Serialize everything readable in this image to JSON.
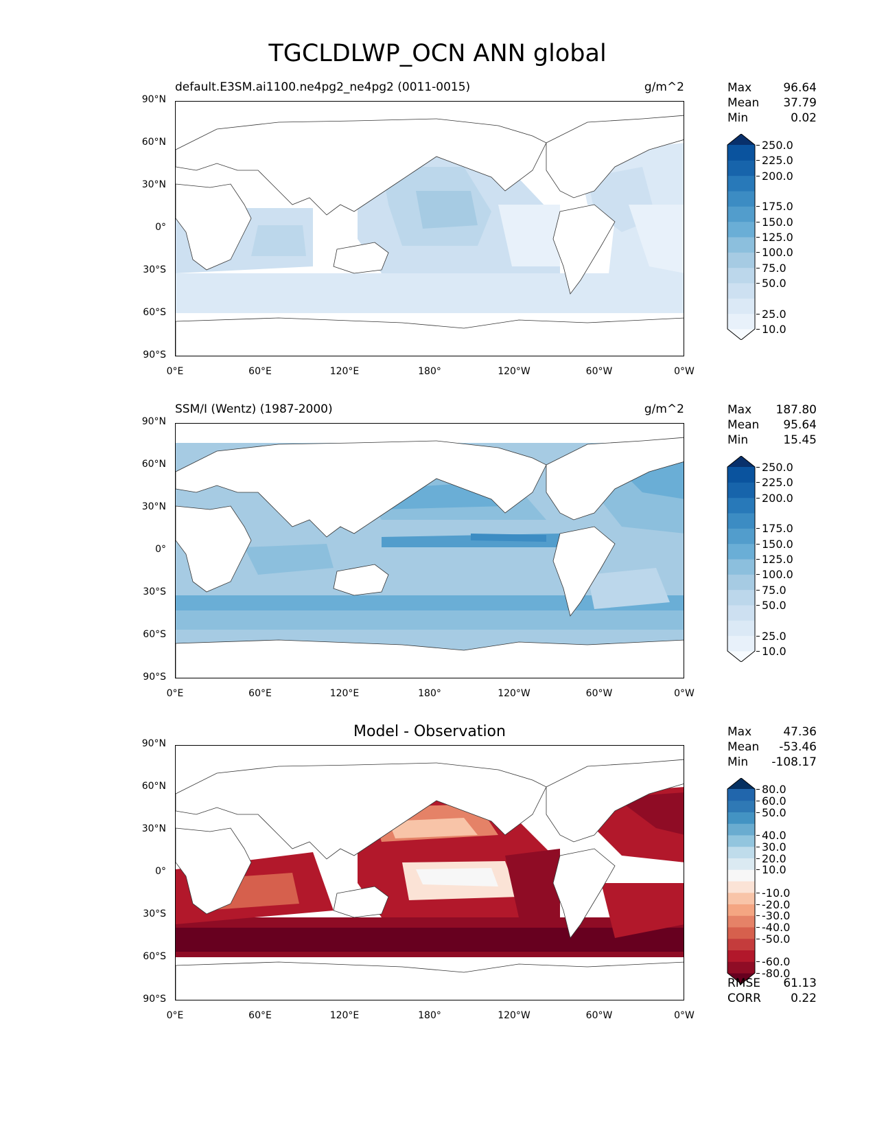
{
  "figure": {
    "title": "TGCLDLWP_OCN ANN global"
  },
  "axes": {
    "lat_labels": [
      "90°N",
      "60°N",
      "30°N",
      "0°",
      "30°S",
      "60°S",
      "90°S"
    ],
    "lon_labels": [
      "0°E",
      "60°E",
      "120°E",
      "180°",
      "120°W",
      "60°W",
      "0°W"
    ]
  },
  "panels": [
    {
      "id": "model",
      "title_left": "default.E3SM.ai1100.ne4pg2_ne4pg2 (0011-0015)",
      "title_right": "g/m^2",
      "stats": [
        {
          "label": "Max",
          "value": "96.64"
        },
        {
          "label": "Mean",
          "value": "37.79"
        },
        {
          "label": "Min",
          "value": "0.02"
        }
      ],
      "colorbar_labels": [
        "250.0",
        "225.0",
        "200.0",
        "175.0",
        "150.0",
        "125.0",
        "100.0",
        "75.0",
        "50.0",
        "25.0",
        "10.0"
      ],
      "colors": [
        "#f7fbff",
        "#e8f1fa",
        "#dbe9f6",
        "#cde0f1",
        "#bcd7eb",
        "#a6cbe3",
        "#8cbfdd",
        "#6aaed6",
        "#529dcc",
        "#3c8cc3",
        "#2879b9",
        "#1764ab",
        "#0a539e",
        "#08306b"
      ]
    },
    {
      "id": "obs",
      "title_left": "SSM/I (Wentz) (1987-2000)",
      "title_right": "g/m^2",
      "stats": [
        {
          "label": "Max",
          "value": "187.80"
        },
        {
          "label": "Mean",
          "value": "95.64"
        },
        {
          "label": "Min",
          "value": "15.45"
        }
      ],
      "colorbar_labels": [
        "250.0",
        "225.0",
        "200.0",
        "175.0",
        "150.0",
        "125.0",
        "100.0",
        "75.0",
        "50.0",
        "25.0",
        "10.0"
      ],
      "colors": [
        "#f7fbff",
        "#e8f1fa",
        "#dbe9f6",
        "#cde0f1",
        "#bcd7eb",
        "#a6cbe3",
        "#8cbfdd",
        "#6aaed6",
        "#529dcc",
        "#3c8cc3",
        "#2879b9",
        "#1764ab",
        "#0a539e",
        "#08306b"
      ]
    },
    {
      "id": "diff",
      "title_center": "Model - Observation",
      "stats": [
        {
          "label": "Max",
          "value": "47.36"
        },
        {
          "label": "Mean",
          "value": "-53.46"
        },
        {
          "label": "Min",
          "value": "-108.17"
        }
      ],
      "colorbar_labels": [
        "80.0",
        "60.0",
        "50.0",
        "40.0",
        "30.0",
        "20.0",
        "10.0",
        "-10.0",
        "-20.0",
        "-30.0",
        "-40.0",
        "-50.0",
        "-60.0",
        "-80.0"
      ],
      "colors": [
        "#67001f",
        "#8f0c25",
        "#b2182b",
        "#c43c3c",
        "#d6604d",
        "#e58267",
        "#f4a582",
        "#f8c4a8",
        "#fbe3d6",
        "#f7f7f7",
        "#dbeaf2",
        "#bfdceb",
        "#92c5de",
        "#6aacd0",
        "#4393c3",
        "#2f79b5",
        "#2166ac",
        "#053061"
      ],
      "extra_stats": [
        {
          "label": "RMSE",
          "value": "61.13"
        },
        {
          "label": "CORR",
          "value": "0.22"
        }
      ]
    }
  ]
}
